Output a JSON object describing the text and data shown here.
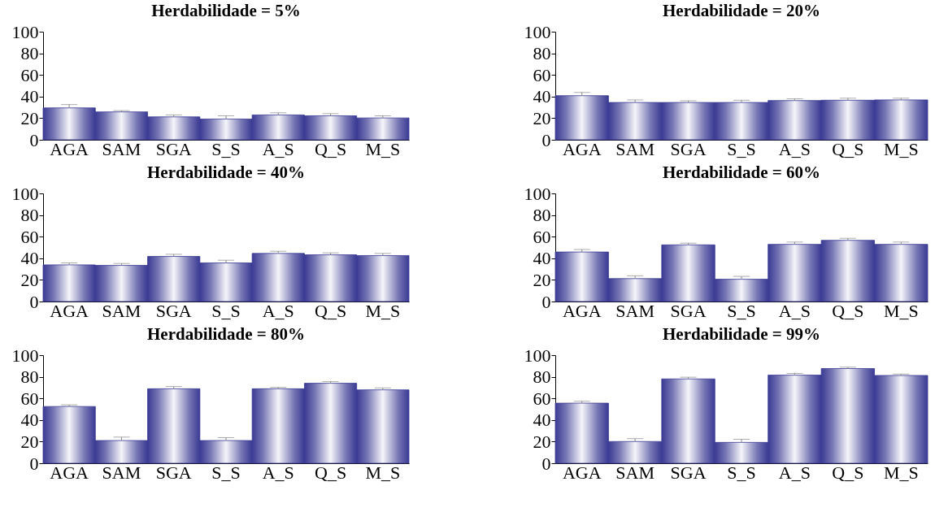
{
  "chart_data": [
    {
      "type": "bar",
      "title": "Herdabilidade = 5%",
      "categories": [
        "AGA",
        "SAM",
        "SGA",
        "S_S",
        "A_S",
        "Q_S",
        "M_S"
      ],
      "values": [
        29.5,
        25.8,
        21.2,
        19.2,
        23.0,
        22.2,
        20.2
      ],
      "errors": [
        [
          29.5,
          32.6
        ],
        [
          25.8,
          27.0
        ],
        [
          21.2,
          23.0
        ],
        [
          19.2,
          22.2
        ],
        [
          23.0,
          25.0
        ],
        [
          22.2,
          24.2
        ],
        [
          20.2,
          22.2
        ]
      ],
      "color": "#3a3a94",
      "ylim": [
        0,
        100
      ],
      "yticks": [
        0,
        20,
        40,
        60,
        80,
        100
      ]
    },
    {
      "type": "bar",
      "title": "Herdabilidade = 20%",
      "categories": [
        "AGA",
        "SAM",
        "SGA",
        "S_S",
        "A_S",
        "Q_S",
        "M_S"
      ],
      "values": [
        40.8,
        34.5,
        34.5,
        34.5,
        36.3,
        36.6,
        36.9
      ],
      "errors": [
        [
          40.8,
          43.8
        ],
        [
          34.5,
          36.9
        ],
        [
          34.5,
          36.1
        ],
        [
          34.5,
          36.6
        ],
        [
          36.3,
          37.9
        ],
        [
          36.6,
          38.5
        ],
        [
          36.9,
          38.5
        ]
      ],
      "color": "#3a3a94",
      "ylim": [
        0,
        100
      ],
      "yticks": [
        0,
        20,
        40,
        60,
        80,
        100
      ]
    },
    {
      "type": "bar",
      "title": "Herdabilidade = 40%",
      "categories": [
        "AGA",
        "SAM",
        "SGA",
        "S_S",
        "A_S",
        "Q_S",
        "M_S"
      ],
      "values": [
        33.9,
        33.4,
        41.7,
        35.7,
        44.5,
        43.2,
        42.5
      ],
      "errors": [
        [
          33.9,
          35.7
        ],
        [
          33.4,
          35.2
        ],
        [
          41.7,
          43.7
        ],
        [
          35.7,
          38.2
        ],
        [
          44.5,
          46.5
        ],
        [
          43.2,
          45.0
        ],
        [
          42.5,
          44.5
        ]
      ],
      "color": "#3a3a94",
      "ylim": [
        0,
        100
      ],
      "yticks": [
        0,
        20,
        40,
        60,
        80,
        100
      ]
    },
    {
      "type": "bar",
      "title": "Herdabilidade = 60%",
      "categories": [
        "AGA",
        "SAM",
        "SGA",
        "S_S",
        "A_S",
        "Q_S",
        "M_S"
      ],
      "values": [
        45.8,
        21.2,
        52.4,
        20.6,
        52.9,
        56.6,
        52.9
      ],
      "errors": [
        [
          45.8,
          48.1
        ],
        [
          21.2,
          23.8
        ],
        [
          52.4,
          54.0
        ],
        [
          20.6,
          23.3
        ],
        [
          52.9,
          55.0
        ],
        [
          56.6,
          58.5
        ],
        [
          52.9,
          55.0
        ]
      ],
      "color": "#3a3a94",
      "ylim": [
        0,
        100
      ],
      "yticks": [
        0,
        20,
        40,
        60,
        80,
        100
      ]
    },
    {
      "type": "bar",
      "title": "Herdabilidade = 80%",
      "categories": [
        "AGA",
        "SAM",
        "SGA",
        "S_S",
        "A_S",
        "Q_S",
        "M_S"
      ],
      "values": [
        52.5,
        21.0,
        68.9,
        21.0,
        68.9,
        74.0,
        67.9
      ],
      "errors": [
        [
          52.5,
          54.0
        ],
        [
          21.0,
          24.2
        ],
        [
          68.9,
          71.0
        ],
        [
          21.0,
          23.7
        ],
        [
          68.9,
          70.2
        ],
        [
          74.0,
          75.5
        ],
        [
          67.9,
          69.7
        ]
      ],
      "color": "#3a3a94",
      "ylim": [
        0,
        100
      ],
      "yticks": [
        0,
        20,
        40,
        60,
        80,
        100
      ]
    },
    {
      "type": "bar",
      "title": "Herdabilidade = 99%",
      "categories": [
        "AGA",
        "SAM",
        "SGA",
        "S_S",
        "A_S",
        "Q_S",
        "M_S"
      ],
      "values": [
        55.6,
        20.1,
        78.0,
        19.3,
        81.5,
        87.6,
        81.2
      ],
      "errors": [
        [
          55.6,
          57.4
        ],
        [
          20.1,
          22.8
        ],
        [
          78.0,
          79.6
        ],
        [
          19.3,
          22.2
        ],
        [
          81.5,
          83.1
        ],
        [
          87.6,
          88.9
        ],
        [
          81.2,
          82.5
        ]
      ],
      "color": "#3a3a94",
      "ylim": [
        0,
        100
      ],
      "yticks": [
        0,
        20,
        40,
        60,
        80,
        100
      ]
    }
  ]
}
